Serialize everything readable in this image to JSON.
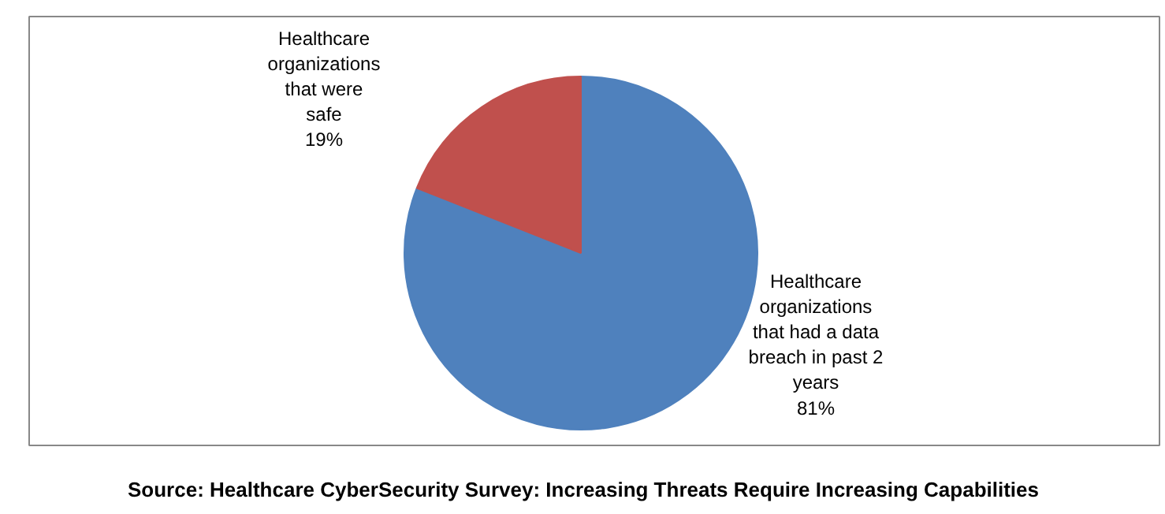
{
  "chart_data": {
    "type": "pie",
    "categories": [
      "Healthcare\norganizations\nthat had a data\nbreach in past 2\nyears",
      "Healthcare\norganizations\nthat were\nsafe"
    ],
    "values": [
      81,
      19
    ],
    "colors": [
      "#4f81bd",
      "#c0504d"
    ],
    "value_labels": [
      "81%",
      "19%"
    ],
    "annotations": [
      "Source: Healthcare CyberSecurity Survey: Increasing Threats Require Increasing Capabilities"
    ]
  }
}
